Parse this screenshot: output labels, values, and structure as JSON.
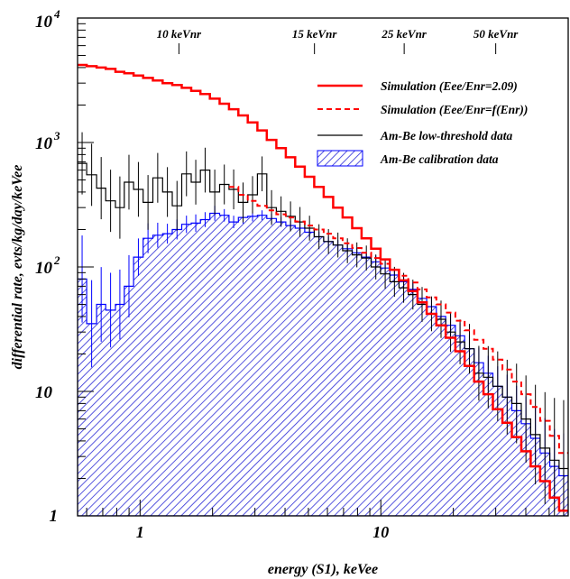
{
  "chart_data": {
    "type": "step-histogram",
    "title": "",
    "xlabel": "energy (S1), keVee",
    "ylabel": "differential rate, evts/kg/day/keVee",
    "xscale": "log",
    "yscale": "log",
    "xlim": [
      0.55,
      60
    ],
    "ylim": [
      1,
      10000
    ],
    "grid": false,
    "legend_position": "top-right",
    "x_ticks": [
      {
        "value": 1,
        "label": "1"
      },
      {
        "value": 10,
        "label": "10"
      }
    ],
    "y_ticks": [
      {
        "value": 1,
        "label": "1",
        "exp": ""
      },
      {
        "value": 10,
        "label": "10",
        "exp": ""
      },
      {
        "value": 100,
        "label": "10",
        "exp": "2"
      },
      {
        "value": 1000,
        "label": "10",
        "exp": "3"
      },
      {
        "value": 10000,
        "label": "10",
        "exp": "4"
      }
    ],
    "top_axis_ticks": [
      {
        "x": 1.45,
        "label": "10 keVnr"
      },
      {
        "x": 5.3,
        "label": "15 keVnr"
      },
      {
        "x": 12.5,
        "label": "25 keVnr"
      },
      {
        "x": 30.0,
        "label": "50 keVnr"
      }
    ],
    "series": [
      {
        "name": "Simulation (Eee/Enr=2.09)",
        "color": "#ff0000",
        "style": "solid",
        "x_edges": [
          0.55,
          0.6,
          0.66,
          0.72,
          0.79,
          0.86,
          0.94,
          1.03,
          1.13,
          1.24,
          1.36,
          1.49,
          1.63,
          1.78,
          1.95,
          2.14,
          2.34,
          2.56,
          2.8,
          3.07,
          3.36,
          3.68,
          4.03,
          4.41,
          4.83,
          5.29,
          5.79,
          6.34,
          6.94,
          7.6,
          8.32,
          9.11,
          9.97,
          10.9,
          11.9,
          13.0,
          14.2,
          15.5,
          17.0,
          18.6,
          20.4,
          22.3,
          24.4,
          26.7,
          29.2,
          32.0,
          35.0,
          38.3,
          41.9,
          45.9,
          50.3,
          55.0,
          60.0
        ],
        "values": [
          4200,
          4100,
          4000,
          3900,
          3700,
          3600,
          3450,
          3300,
          3150,
          3000,
          2900,
          2750,
          2600,
          2450,
          2250,
          2050,
          1850,
          1650,
          1450,
          1250,
          1050,
          900,
          760,
          640,
          530,
          440,
          365,
          300,
          250,
          205,
          170,
          140,
          115,
          95,
          78,
          64,
          52,
          42,
          34,
          27,
          21,
          16,
          12,
          9.5,
          7.2,
          5.6,
          4.3,
          3.3,
          2.5,
          1.9,
          1.4,
          1.1
        ]
      },
      {
        "name": "Simulation (Eee/Enr=f(Enr))",
        "color": "#ff0000",
        "style": "dashed",
        "x_edges": [
          2.34,
          2.56,
          2.8,
          3.07,
          3.36,
          3.68,
          4.03,
          4.41,
          4.83,
          5.29,
          5.79,
          6.34,
          6.94,
          7.6,
          8.32,
          9.11,
          9.97,
          10.9,
          11.9,
          13.0,
          14.2,
          15.5,
          17.0,
          18.6,
          20.4,
          22.3,
          24.4,
          26.7,
          29.2,
          32.0,
          35.0,
          38.3,
          41.9,
          45.9,
          50.3,
          55.0,
          60.0
        ],
        "values": [
          440,
          380,
          340,
          310,
          285,
          265,
          250,
          232,
          215,
          200,
          185,
          170,
          155,
          142,
          130,
          118,
          106,
          95,
          85,
          75,
          66,
          57,
          50,
          43,
          37,
          31,
          26,
          22,
          18,
          15,
          12,
          9.5,
          7.5,
          5.8,
          4.4,
          3.2
        ]
      },
      {
        "name": "Am-Be low-threshold data",
        "color": "#000000",
        "style": "steps-with-errors",
        "x_edges": [
          0.55,
          0.6,
          0.66,
          0.72,
          0.79,
          0.86,
          0.94,
          1.03,
          1.13,
          1.24,
          1.36,
          1.49,
          1.63,
          1.78,
          1.95,
          2.14,
          2.34,
          2.56,
          2.8,
          3.07,
          3.36,
          3.68,
          4.03,
          4.41,
          4.83,
          5.29,
          5.79,
          6.34,
          6.94,
          7.6,
          8.32,
          9.11,
          9.97,
          10.9,
          11.9,
          13.0,
          14.2,
          15.5,
          17.0,
          18.6,
          20.4,
          22.3,
          24.4,
          26.7,
          29.2,
          32.0,
          35.0,
          38.3,
          41.9,
          45.9,
          50.3,
          55.0,
          60.0
        ],
        "values": [
          680,
          550,
          430,
          340,
          300,
          480,
          420,
          330,
          520,
          400,
          310,
          560,
          480,
          600,
          400,
          460,
          420,
          330,
          380,
          560,
          300,
          280,
          255,
          230,
          205,
          175,
          160,
          150,
          135,
          125,
          118,
          100,
          88,
          76,
          68,
          60,
          50,
          42,
          38,
          30,
          25,
          22,
          14,
          13,
          11,
          9,
          8,
          6,
          4.5,
          3.5,
          2.8,
          2.4
        ],
        "errors": [
          0.25,
          0.25,
          0.25,
          0.25,
          0.25,
          0.22,
          0.22,
          0.22,
          0.2,
          0.2,
          0.2,
          0.18,
          0.18,
          0.18,
          0.18,
          0.16,
          0.16,
          0.16,
          0.15,
          0.14,
          0.14,
          0.12,
          0.12,
          0.12,
          0.1,
          0.1,
          0.1,
          0.1,
          0.1,
          0.1,
          0.1,
          0.1,
          0.12,
          0.12,
          0.12,
          0.12,
          0.14,
          0.14,
          0.15,
          0.16,
          0.18,
          0.2,
          0.22,
          0.25,
          0.28,
          0.3,
          0.32,
          0.35,
          0.4,
          0.45,
          0.5,
          0.55
        ]
      },
      {
        "name": "Am-Be calibration data",
        "color": "#0000ff",
        "style": "hatched-filled-histogram",
        "x_edges": [
          0.55,
          0.6,
          0.66,
          0.72,
          0.79,
          0.86,
          0.94,
          1.03,
          1.13,
          1.24,
          1.36,
          1.49,
          1.63,
          1.78,
          1.95,
          2.14,
          2.34,
          2.56,
          2.8,
          3.07,
          3.36,
          3.68,
          4.03,
          4.41,
          4.83,
          5.29,
          5.79,
          6.34,
          6.94,
          7.6,
          8.32,
          9.11,
          9.97,
          10.9,
          11.9,
          13.0,
          14.2,
          15.5,
          17.0,
          18.6,
          20.4,
          22.3,
          24.4,
          26.7,
          29.2,
          32.0,
          35.0,
          38.3,
          41.9,
          45.9,
          50.3,
          55.0,
          60.0
        ],
        "values": [
          80,
          35,
          50,
          45,
          50,
          70,
          120,
          170,
          180,
          185,
          200,
          220,
          225,
          240,
          270,
          260,
          230,
          250,
          255,
          260,
          245,
          230,
          215,
          205,
          190,
          175,
          160,
          150,
          140,
          130,
          120,
          110,
          98,
          86,
          76,
          66,
          56,
          48,
          40,
          34,
          28,
          22,
          17,
          14,
          11,
          9,
          7,
          5.5,
          4.2,
          3.2,
          2.5,
          2.1
        ],
        "errors": [
          0.35,
          0.35,
          0.3,
          0.3,
          0.28,
          0.25,
          0.15,
          0.12,
          0.1,
          0.08,
          0.08,
          0.07,
          0.07,
          0.06,
          0.06,
          0.05,
          0.05,
          0.05,
          0.04,
          0.04,
          0.04,
          0.04,
          0.04,
          0.04,
          0.04,
          0.04,
          0.04,
          0.04,
          0.04,
          0.04,
          0.04,
          0.05,
          0.05,
          0.05,
          0.05,
          0.06,
          0.06,
          0.07,
          0.08,
          0.09,
          0.1,
          0.11,
          0.12,
          0.14,
          0.16,
          0.18,
          0.2,
          0.22,
          0.25,
          0.28,
          0.3,
          0.34
        ]
      }
    ]
  }
}
